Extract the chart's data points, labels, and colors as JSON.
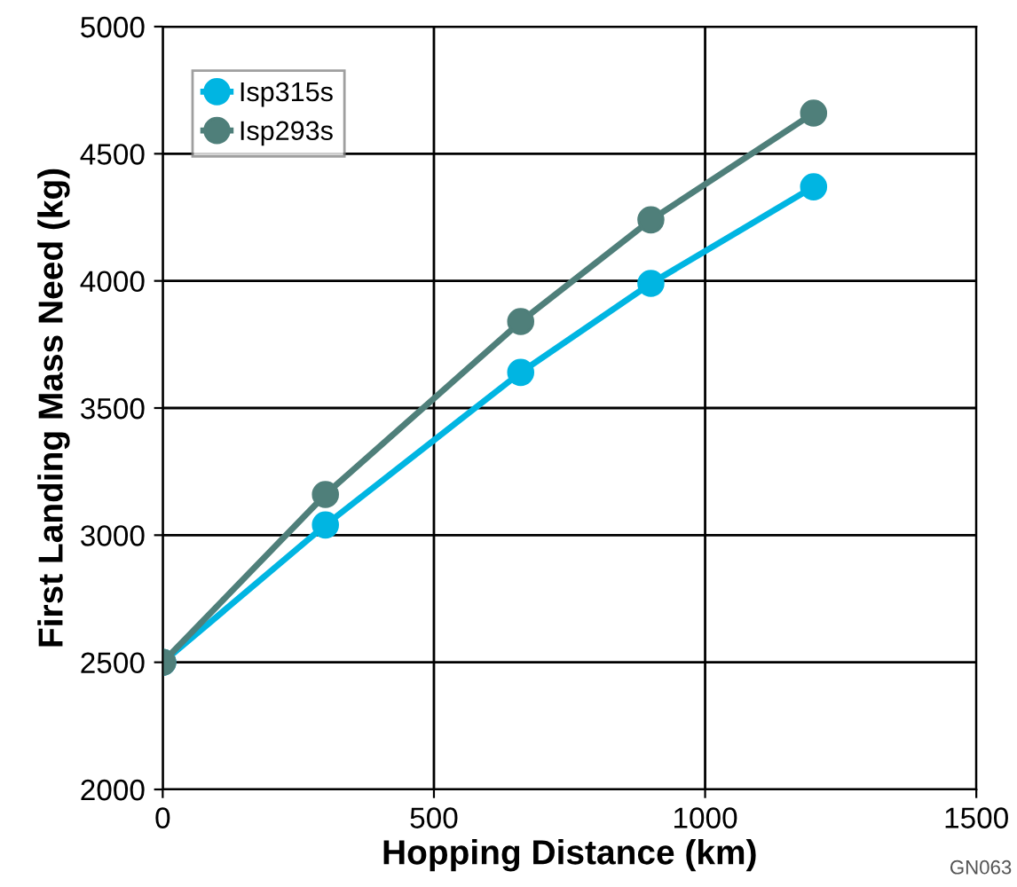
{
  "chart_data": {
    "type": "line",
    "xlabel": "Hopping Distance (km)",
    "ylabel": "First Landing Mass Need (kg)",
    "x": [
      0,
      300,
      660,
      900,
      1200
    ],
    "series": [
      {
        "name": "Isp315s",
        "color": "#00b5e2",
        "values": [
          2500,
          3040,
          3640,
          3990,
          4370
        ]
      },
      {
        "name": "Isp293s",
        "color": "#4f7f7a",
        "values": [
          2500,
          3160,
          3840,
          4240,
          4660
        ]
      }
    ],
    "xlim": [
      0,
      1500
    ],
    "xticks": [
      0,
      500,
      1000,
      1500
    ],
    "ylim": [
      2000,
      5000
    ],
    "yticks": [
      2000,
      2500,
      3000,
      3500,
      4000,
      4500,
      5000
    ],
    "grid": true,
    "legend": "top left",
    "marker": "circle",
    "line_style": "solid",
    "annotations": [
      "GN063"
    ]
  }
}
